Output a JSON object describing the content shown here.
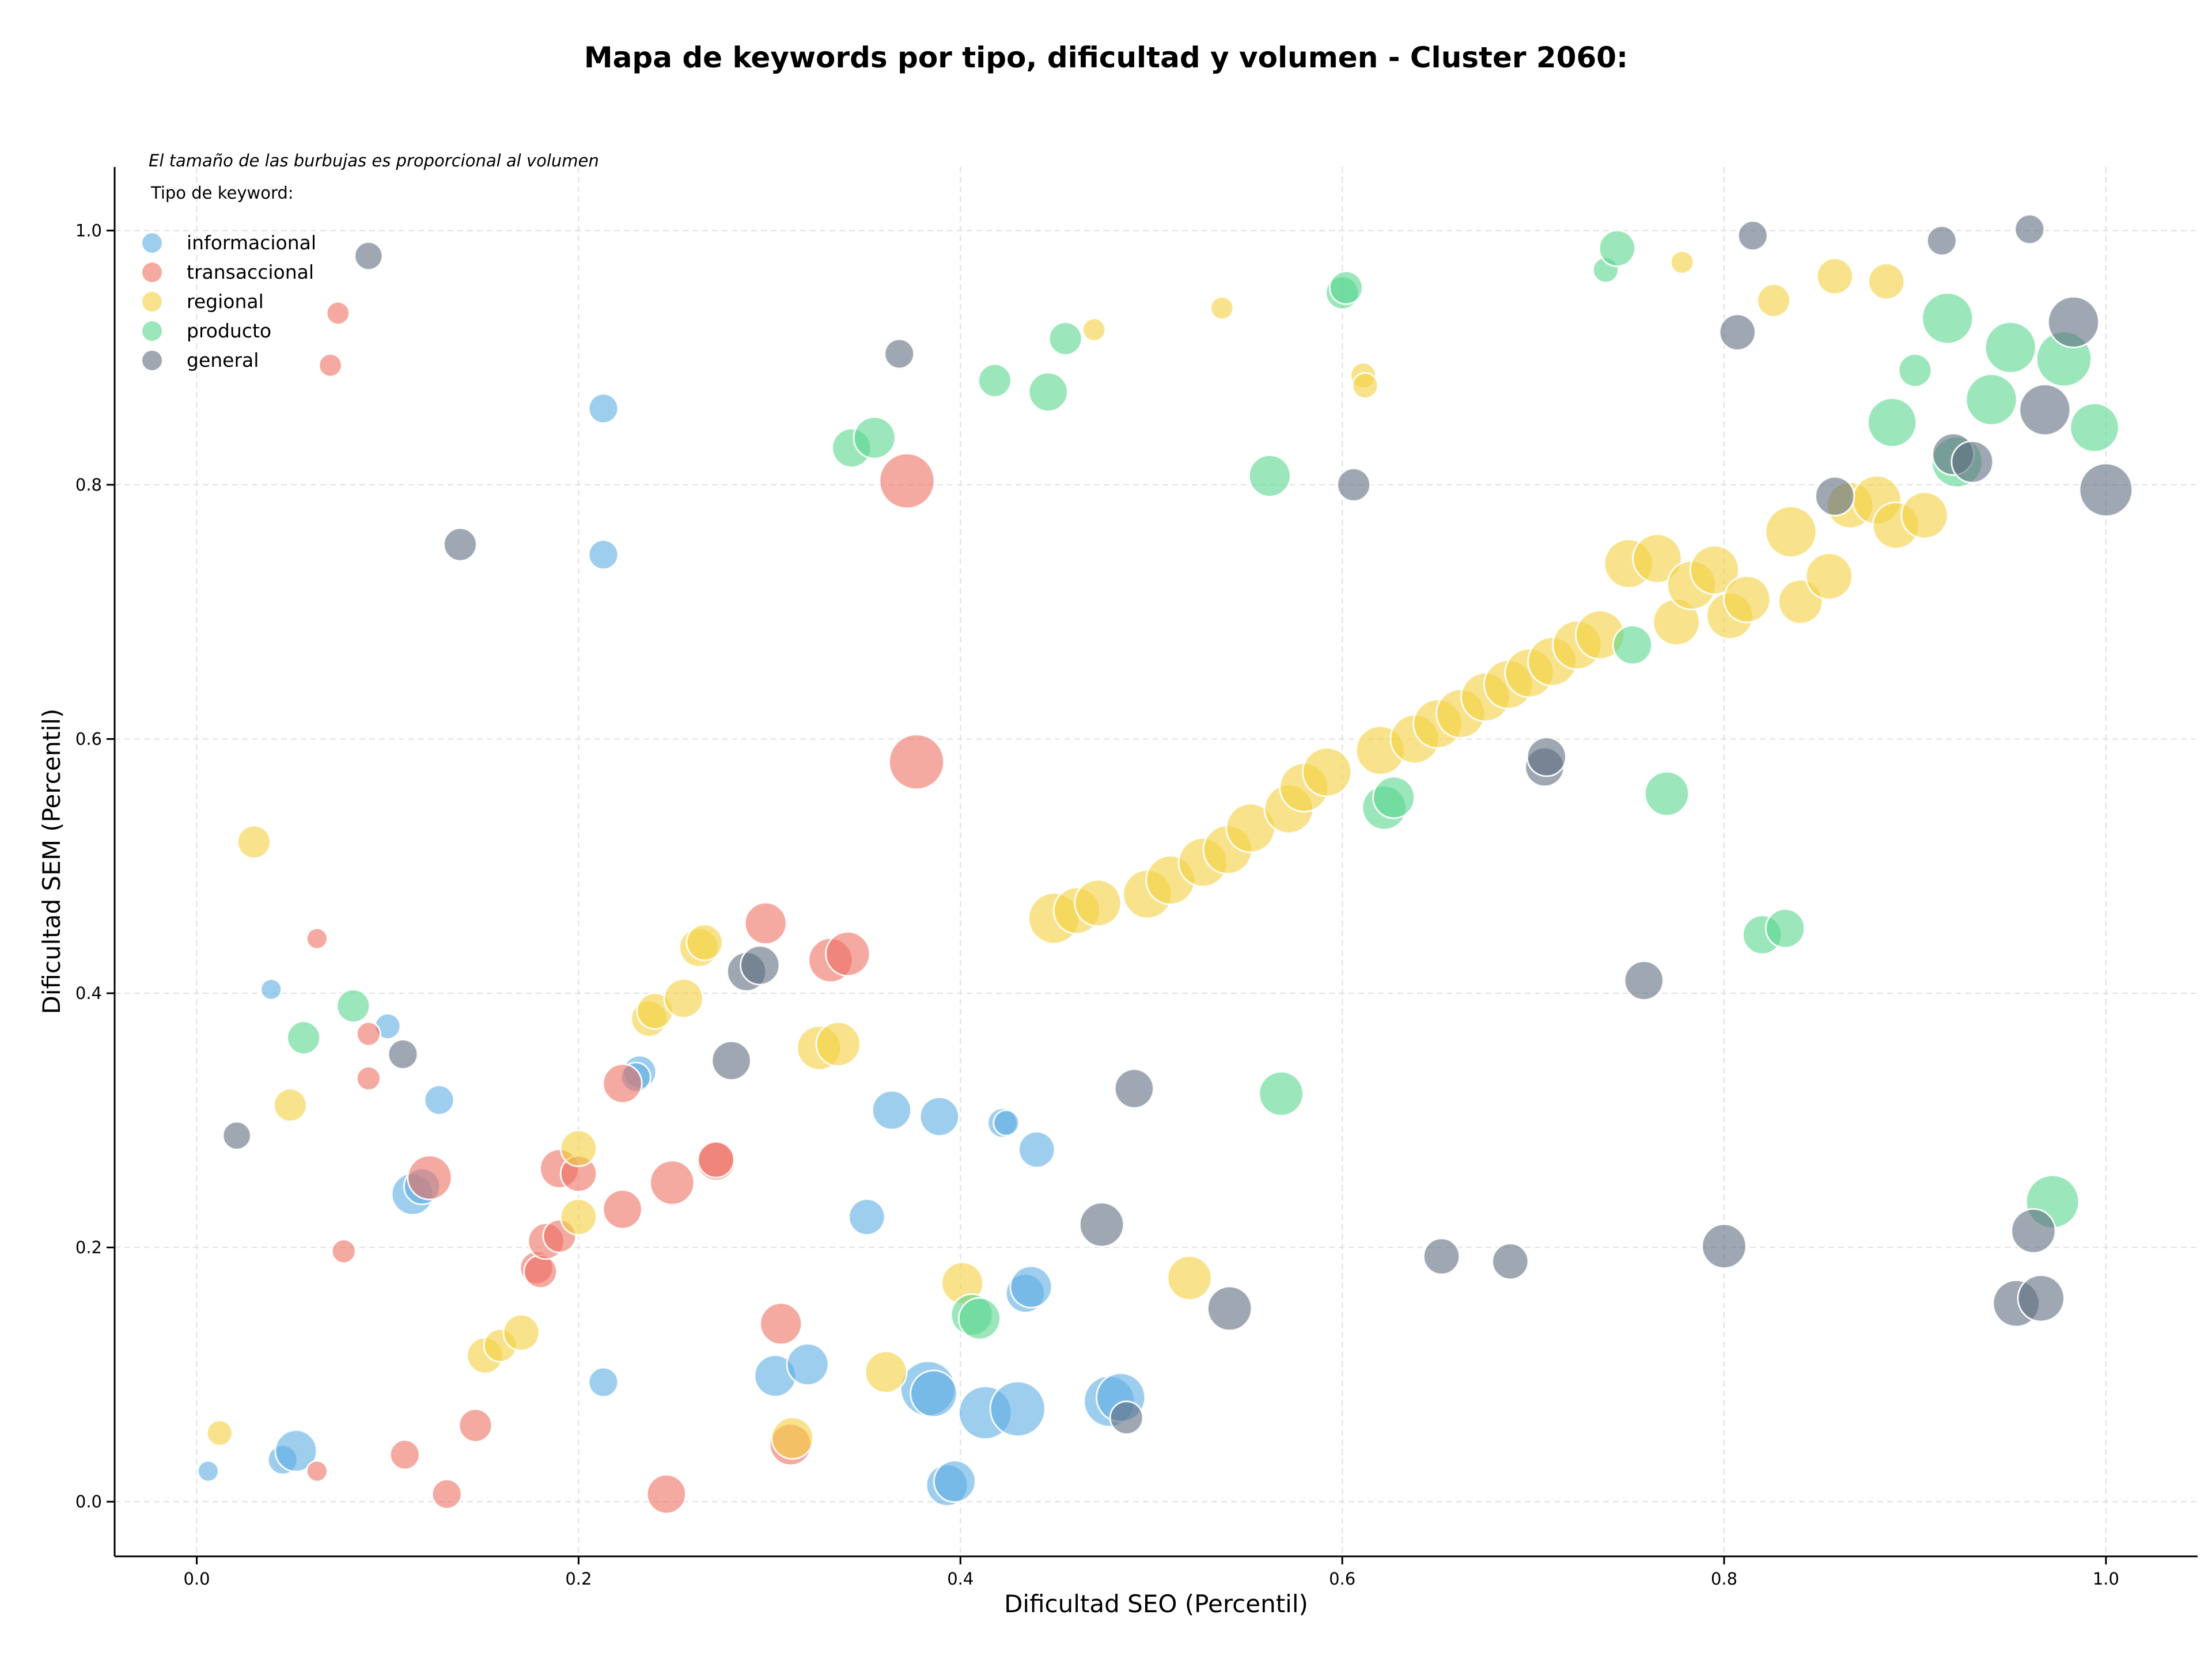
{
  "chart_data": {
    "type": "scatter",
    "title": "Mapa de keywords por tipo, dificultad y volumen - Cluster 2060:",
    "subtitle": "El tamaño de las burbujas es proporcional al volumen",
    "xlabel": "Dificultad SEO (Percentil)",
    "ylabel": "Dificultad SEM (Percentil)",
    "xlim": [
      -0.043,
      1.048
    ],
    "ylim": [
      -0.043,
      1.05
    ],
    "xticks": [
      "0.0",
      "0.2",
      "0.4",
      "0.6",
      "0.8",
      "1.0"
    ],
    "yticks": [
      "0.0",
      "0.2",
      "0.4",
      "0.6",
      "0.8",
      "1.0"
    ],
    "grid": true,
    "legend_title": "Tipo de keyword:",
    "legend_position": "top-left",
    "series": [
      {
        "name": "informacional",
        "color": "#5dade2",
        "points": [
          {
            "x": 0.006,
            "y": 0.024,
            "s": 1
          },
          {
            "x": 0.039,
            "y": 0.403,
            "s": 1
          },
          {
            "x": 0.045,
            "y": 0.033,
            "s": 2
          },
          {
            "x": 0.052,
            "y": 0.04,
            "s": 4
          },
          {
            "x": 0.1,
            "y": 0.374,
            "s": 1.5
          },
          {
            "x": 0.127,
            "y": 0.316,
            "s": 2
          },
          {
            "x": 0.113,
            "y": 0.242,
            "s": 4
          },
          {
            "x": 0.118,
            "y": 0.248,
            "s": 3
          },
          {
            "x": 0.213,
            "y": 0.86,
            "s": 2
          },
          {
            "x": 0.213,
            "y": 0.745,
            "s": 2
          },
          {
            "x": 0.213,
            "y": 0.094,
            "s": 2
          },
          {
            "x": 0.232,
            "y": 0.338,
            "s": 2.5
          },
          {
            "x": 0.23,
            "y": 0.334,
            "s": 2
          },
          {
            "x": 0.303,
            "y": 0.099,
            "s": 4
          },
          {
            "x": 0.32,
            "y": 0.108,
            "s": 4
          },
          {
            "x": 0.351,
            "y": 0.224,
            "s": 3
          },
          {
            "x": 0.364,
            "y": 0.308,
            "s": 3.5
          },
          {
            "x": 0.389,
            "y": 0.303,
            "s": 3.5
          },
          {
            "x": 0.383,
            "y": 0.089,
            "s": 7
          },
          {
            "x": 0.386,
            "y": 0.085,
            "s": 5
          },
          {
            "x": 0.393,
            "y": 0.013,
            "s": 4
          },
          {
            "x": 0.397,
            "y": 0.016,
            "s": 4
          },
          {
            "x": 0.413,
            "y": 0.07,
            "s": 6.5
          },
          {
            "x": 0.43,
            "y": 0.073,
            "s": 7
          },
          {
            "x": 0.422,
            "y": 0.298,
            "s": 2
          },
          {
            "x": 0.424,
            "y": 0.298,
            "s": 1.5
          },
          {
            "x": 0.434,
            "y": 0.164,
            "s": 3.5
          },
          {
            "x": 0.437,
            "y": 0.169,
            "s": 4
          },
          {
            "x": 0.44,
            "y": 0.277,
            "s": 3
          },
          {
            "x": 0.478,
            "y": 0.079,
            "s": 6
          },
          {
            "x": 0.484,
            "y": 0.082,
            "s": 5.5
          }
        ]
      },
      {
        "name": "transaccional",
        "color": "#ec7063",
        "points": [
          {
            "x": 0.063,
            "y": 0.443,
            "s": 1
          },
          {
            "x": 0.063,
            "y": 0.024,
            "s": 1
          },
          {
            "x": 0.07,
            "y": 0.894,
            "s": 1.2
          },
          {
            "x": 0.074,
            "y": 0.935,
            "s": 1.2
          },
          {
            "x": 0.077,
            "y": 0.197,
            "s": 1.3
          },
          {
            "x": 0.09,
            "y": 0.368,
            "s": 1.3
          },
          {
            "x": 0.09,
            "y": 0.333,
            "s": 1.3
          },
          {
            "x": 0.109,
            "y": 0.037,
            "s": 2
          },
          {
            "x": 0.122,
            "y": 0.255,
            "s": 4.5
          },
          {
            "x": 0.131,
            "y": 0.006,
            "s": 2
          },
          {
            "x": 0.146,
            "y": 0.06,
            "s": 2.5
          },
          {
            "x": 0.178,
            "y": 0.184,
            "s": 2.5
          },
          {
            "x": 0.18,
            "y": 0.181,
            "s": 2.5
          },
          {
            "x": 0.183,
            "y": 0.205,
            "s": 3
          },
          {
            "x": 0.19,
            "y": 0.209,
            "s": 2.5
          },
          {
            "x": 0.19,
            "y": 0.262,
            "s": 3.5
          },
          {
            "x": 0.2,
            "y": 0.258,
            "s": 3
          },
          {
            "x": 0.223,
            "y": 0.329,
            "s": 3.5
          },
          {
            "x": 0.223,
            "y": 0.23,
            "s": 3.5
          },
          {
            "x": 0.246,
            "y": 0.006,
            "s": 3.5
          },
          {
            "x": 0.249,
            "y": 0.251,
            "s": 4.5
          },
          {
            "x": 0.272,
            "y": 0.268,
            "s": 3.5
          },
          {
            "x": 0.272,
            "y": 0.269,
            "s": 3
          },
          {
            "x": 0.298,
            "y": 0.455,
            "s": 4
          },
          {
            "x": 0.306,
            "y": 0.14,
            "s": 4
          },
          {
            "x": 0.311,
            "y": 0.045,
            "s": 4
          },
          {
            "x": 0.332,
            "y": 0.426,
            "s": 4.5
          },
          {
            "x": 0.341,
            "y": 0.431,
            "s": 4.5
          },
          {
            "x": 0.372,
            "y": 0.803,
            "s": 7
          },
          {
            "x": 0.377,
            "y": 0.582,
            "s": 7
          }
        ]
      },
      {
        "name": "regional",
        "color": "#f4d03f",
        "points": [
          {
            "x": 0.012,
            "y": 0.054,
            "s": 1.5
          },
          {
            "x": 0.03,
            "y": 0.519,
            "s": 2.5
          },
          {
            "x": 0.049,
            "y": 0.312,
            "s": 2.5
          },
          {
            "x": 0.151,
            "y": 0.115,
            "s": 3
          },
          {
            "x": 0.159,
            "y": 0.123,
            "s": 2.5
          },
          {
            "x": 0.17,
            "y": 0.133,
            "s": 3
          },
          {
            "x": 0.2,
            "y": 0.278,
            "s": 3
          },
          {
            "x": 0.2,
            "y": 0.224,
            "s": 3
          },
          {
            "x": 0.237,
            "y": 0.38,
            "s": 3
          },
          {
            "x": 0.24,
            "y": 0.386,
            "s": 3
          },
          {
            "x": 0.255,
            "y": 0.396,
            "s": 3.5
          },
          {
            "x": 0.263,
            "y": 0.436,
            "s": 3.5
          },
          {
            "x": 0.266,
            "y": 0.44,
            "s": 3
          },
          {
            "x": 0.312,
            "y": 0.05,
            "s": 4
          },
          {
            "x": 0.326,
            "y": 0.357,
            "s": 4.5
          },
          {
            "x": 0.336,
            "y": 0.36,
            "s": 4.5
          },
          {
            "x": 0.361,
            "y": 0.102,
            "s": 4
          },
          {
            "x": 0.401,
            "y": 0.172,
            "s": 4
          },
          {
            "x": 0.449,
            "y": 0.459,
            "s": 6
          },
          {
            "x": 0.461,
            "y": 0.465,
            "s": 5
          },
          {
            "x": 0.472,
            "y": 0.471,
            "s": 5
          },
          {
            "x": 0.47,
            "y": 0.922,
            "s": 1.2
          },
          {
            "x": 0.498,
            "y": 0.478,
            "s": 5.5
          },
          {
            "x": 0.51,
            "y": 0.489,
            "s": 5.5
          },
          {
            "x": 0.52,
            "y": 0.176,
            "s": 4.5
          },
          {
            "x": 0.527,
            "y": 0.503,
            "s": 5.5
          },
          {
            "x": 0.54,
            "y": 0.513,
            "s": 5.5
          },
          {
            "x": 0.537,
            "y": 0.939,
            "s": 1.2
          },
          {
            "x": 0.552,
            "y": 0.53,
            "s": 5.5
          },
          {
            "x": 0.572,
            "y": 0.545,
            "s": 5.5
          },
          {
            "x": 0.58,
            "y": 0.562,
            "s": 5.5
          },
          {
            "x": 0.592,
            "y": 0.574,
            "s": 5.5
          },
          {
            "x": 0.611,
            "y": 0.886,
            "s": 1.5
          },
          {
            "x": 0.612,
            "y": 0.878,
            "s": 1.5
          },
          {
            "x": 0.62,
            "y": 0.591,
            "s": 5.5
          },
          {
            "x": 0.638,
            "y": 0.6,
            "s": 5.5
          },
          {
            "x": 0.65,
            "y": 0.612,
            "s": 5.5
          },
          {
            "x": 0.662,
            "y": 0.62,
            "s": 5.5
          },
          {
            "x": 0.675,
            "y": 0.633,
            "s": 5.5
          },
          {
            "x": 0.687,
            "y": 0.643,
            "s": 5.5
          },
          {
            "x": 0.698,
            "y": 0.652,
            "s": 5.5
          },
          {
            "x": 0.71,
            "y": 0.661,
            "s": 5.5
          },
          {
            "x": 0.723,
            "y": 0.674,
            "s": 5.5
          },
          {
            "x": 0.735,
            "y": 0.682,
            "s": 5.5
          },
          {
            "x": 0.75,
            "y": 0.738,
            "s": 5.5
          },
          {
            "x": 0.765,
            "y": 0.742,
            "s": 5.5
          },
          {
            "x": 0.775,
            "y": 0.692,
            "s": 5
          },
          {
            "x": 0.778,
            "y": 0.975,
            "s": 1.2
          },
          {
            "x": 0.783,
            "y": 0.721,
            "s": 5.5
          },
          {
            "x": 0.795,
            "y": 0.733,
            "s": 5.5
          },
          {
            "x": 0.803,
            "y": 0.697,
            "s": 5
          },
          {
            "x": 0.812,
            "y": 0.71,
            "s": 5
          },
          {
            "x": 0.826,
            "y": 0.945,
            "s": 2.5
          },
          {
            "x": 0.835,
            "y": 0.763,
            "s": 6
          },
          {
            "x": 0.84,
            "y": 0.708,
            "s": 4.5
          },
          {
            "x": 0.855,
            "y": 0.728,
            "s": 5
          },
          {
            "x": 0.858,
            "y": 0.964,
            "s": 3
          },
          {
            "x": 0.866,
            "y": 0.784,
            "s": 5
          },
          {
            "x": 0.88,
            "y": 0.788,
            "s": 5.5
          },
          {
            "x": 0.885,
            "y": 0.96,
            "s": 3
          },
          {
            "x": 0.89,
            "y": 0.768,
            "s": 5
          },
          {
            "x": 0.905,
            "y": 0.776,
            "s": 5
          }
        ]
      },
      {
        "name": "producto",
        "color": "#58d68d",
        "points": [
          {
            "x": 0.056,
            "y": 0.365,
            "s": 2.5
          },
          {
            "x": 0.082,
            "y": 0.39,
            "s": 2.5
          },
          {
            "x": 0.343,
            "y": 0.829,
            "s": 3.5
          },
          {
            "x": 0.355,
            "y": 0.837,
            "s": 4
          },
          {
            "x": 0.406,
            "y": 0.147,
            "s": 4
          },
          {
            "x": 0.41,
            "y": 0.144,
            "s": 4
          },
          {
            "x": 0.418,
            "y": 0.882,
            "s": 2.5
          },
          {
            "x": 0.446,
            "y": 0.873,
            "s": 3.5
          },
          {
            "x": 0.455,
            "y": 0.915,
            "s": 2.5
          },
          {
            "x": 0.562,
            "y": 0.807,
            "s": 4
          },
          {
            "x": 0.568,
            "y": 0.321,
            "s": 4.5
          },
          {
            "x": 0.6,
            "y": 0.951,
            "s": 2.5
          },
          {
            "x": 0.602,
            "y": 0.955,
            "s": 2.5
          },
          {
            "x": 0.622,
            "y": 0.546,
            "s": 4.5
          },
          {
            "x": 0.627,
            "y": 0.554,
            "s": 4
          },
          {
            "x": 0.738,
            "y": 0.969,
            "s": 1.5
          },
          {
            "x": 0.744,
            "y": 0.986,
            "s": 3
          },
          {
            "x": 0.752,
            "y": 0.674,
            "s": 3.5
          },
          {
            "x": 0.77,
            "y": 0.557,
            "s": 4.5
          },
          {
            "x": 0.82,
            "y": 0.446,
            "s": 3.5
          },
          {
            "x": 0.832,
            "y": 0.451,
            "s": 3.5
          },
          {
            "x": 0.888,
            "y": 0.849,
            "s": 5.5
          },
          {
            "x": 0.9,
            "y": 0.89,
            "s": 2.5
          },
          {
            "x": 0.917,
            "y": 0.931,
            "s": 6
          },
          {
            "x": 0.922,
            "y": 0.818,
            "s": 6
          },
          {
            "x": 0.94,
            "y": 0.867,
            "s": 6
          },
          {
            "x": 0.95,
            "y": 0.908,
            "s": 6
          },
          {
            "x": 0.972,
            "y": 0.236,
            "s": 6.5
          },
          {
            "x": 0.978,
            "y": 0.899,
            "s": 7
          },
          {
            "x": 0.994,
            "y": 0.845,
            "s": 5.5
          }
        ]
      },
      {
        "name": "general",
        "color": "#5d6d7e",
        "points": [
          {
            "x": 0.021,
            "y": 0.288,
            "s": 1.8
          },
          {
            "x": 0.09,
            "y": 0.98,
            "s": 1.8
          },
          {
            "x": 0.108,
            "y": 0.352,
            "s": 2
          },
          {
            "x": 0.138,
            "y": 0.753,
            "s": 2.5
          },
          {
            "x": 0.28,
            "y": 0.347,
            "s": 3.5
          },
          {
            "x": 0.288,
            "y": 0.417,
            "s": 3.5
          },
          {
            "x": 0.295,
            "y": 0.422,
            "s": 3.5
          },
          {
            "x": 0.368,
            "y": 0.903,
            "s": 2
          },
          {
            "x": 0.474,
            "y": 0.218,
            "s": 4.5
          },
          {
            "x": 0.487,
            "y": 0.066,
            "s": 2.5
          },
          {
            "x": 0.491,
            "y": 0.325,
            "s": 3.5
          },
          {
            "x": 0.541,
            "y": 0.152,
            "s": 4.5
          },
          {
            "x": 0.606,
            "y": 0.8,
            "s": 2.5
          },
          {
            "x": 0.652,
            "y": 0.193,
            "s": 3
          },
          {
            "x": 0.688,
            "y": 0.189,
            "s": 3
          },
          {
            "x": 0.706,
            "y": 0.578,
            "s": 3.5
          },
          {
            "x": 0.707,
            "y": 0.586,
            "s": 3.5
          },
          {
            "x": 0.758,
            "y": 0.41,
            "s": 3.5
          },
          {
            "x": 0.8,
            "y": 0.201,
            "s": 4.5
          },
          {
            "x": 0.807,
            "y": 0.92,
            "s": 3
          },
          {
            "x": 0.815,
            "y": 0.996,
            "s": 2
          },
          {
            "x": 0.858,
            "y": 0.791,
            "s": 3.5
          },
          {
            "x": 0.92,
            "y": 0.824,
            "s": 4
          },
          {
            "x": 0.93,
            "y": 0.818,
            "s": 4
          },
          {
            "x": 0.914,
            "y": 0.992,
            "s": 2
          },
          {
            "x": 0.953,
            "y": 0.156,
            "s": 5
          },
          {
            "x": 0.96,
            "y": 1.001,
            "s": 2
          },
          {
            "x": 0.962,
            "y": 0.213,
            "s": 4.5
          },
          {
            "x": 0.966,
            "y": 0.16,
            "s": 5
          },
          {
            "x": 0.968,
            "y": 0.859,
            "s": 6
          },
          {
            "x": 0.983,
            "y": 0.928,
            "s": 6
          },
          {
            "x": 1.0,
            "y": 0.796,
            "s": 6.5
          }
        ]
      }
    ]
  }
}
